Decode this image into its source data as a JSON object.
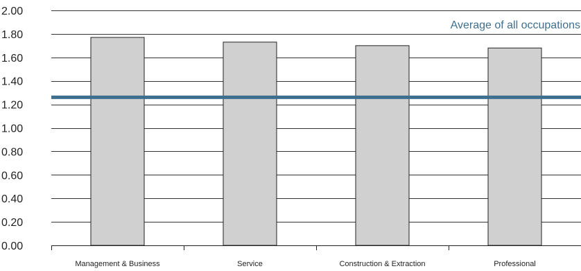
{
  "chart_data": {
    "type": "bar",
    "title": "",
    "xlabel": "",
    "ylabel": "",
    "categories": [
      "Management & Business",
      "Service",
      "Construction & Extraction",
      "Professional"
    ],
    "values": [
      1.77,
      1.73,
      1.7,
      1.68
    ],
    "ylim": [
      0,
      2.0
    ],
    "yticks": [
      0.0,
      0.2,
      0.4,
      0.6,
      0.8,
      1.0,
      1.2,
      1.4,
      1.6,
      1.8,
      2.0
    ],
    "ytick_labels": [
      "0.00",
      "0.20",
      "0.40",
      "0.60",
      "0.80",
      "1.00",
      "1.20",
      "1.40",
      "1.60",
      "1.80",
      "2.00"
    ],
    "grid": true,
    "reference_line": {
      "label": "Average of all occupations",
      "value": 1.26
    },
    "colors": {
      "bar_fill": "#d0d0d0",
      "bar_stroke": "#222222",
      "reference_line": "#3f6f8f",
      "grid": "#333333"
    }
  }
}
